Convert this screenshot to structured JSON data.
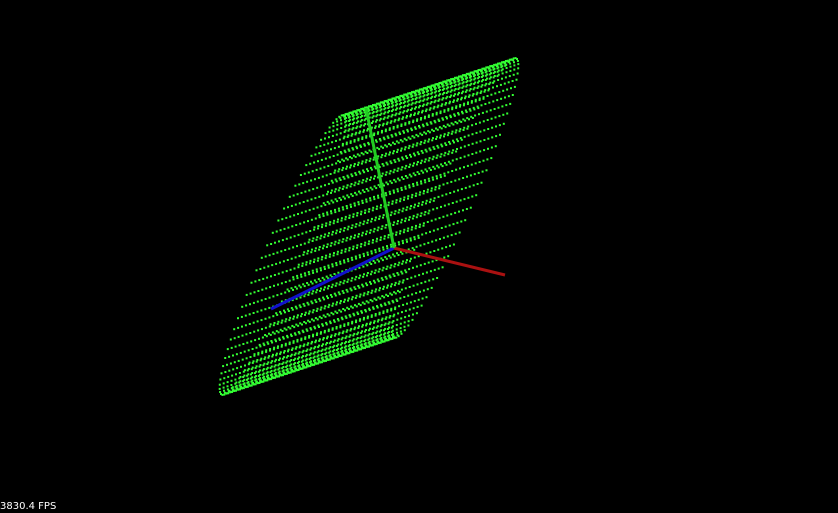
{
  "viewer": {
    "fps_label": "3830.4 FPS"
  },
  "colors": {
    "background": "#000000",
    "points": "#33ff33",
    "axis_x": "#aa1111",
    "axis_y": "#22cc22",
    "axis_z": "#1111cc"
  },
  "scene": {
    "object": "point-cloud-cylinder",
    "axes": [
      "x-axis",
      "y-axis",
      "z-axis"
    ]
  }
}
